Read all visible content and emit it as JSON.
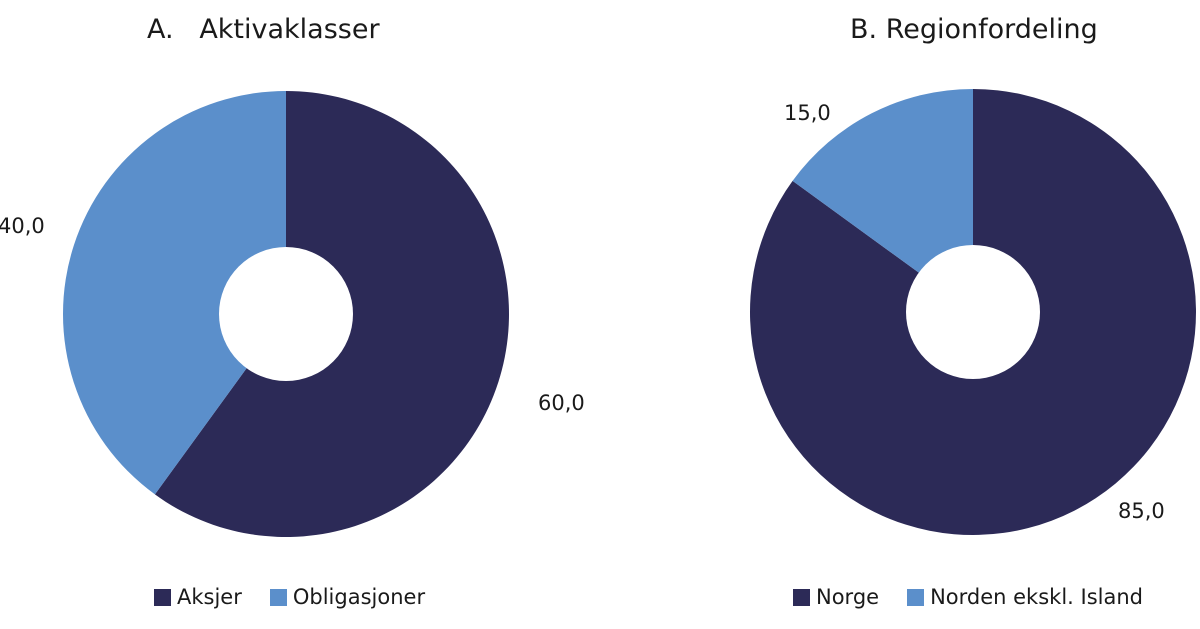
{
  "chart_data": [
    {
      "type": "pie",
      "donut": true,
      "title": "A.   Aktivaklasser",
      "categories": [
        "Aksjer",
        "Obligasjoner"
      ],
      "values": [
        60.0,
        40.0
      ],
      "value_labels": [
        "60,0",
        "40,0"
      ],
      "colors": [
        "#2c2a57",
        "#5b8fcb"
      ],
      "legend": "bottom"
    },
    {
      "type": "pie",
      "donut": true,
      "title": "B. Regionfordeling",
      "categories": [
        "Norge",
        "Norden ekskl. Island"
      ],
      "values": [
        85.0,
        15.0
      ],
      "value_labels": [
        "85,0",
        "15,0"
      ],
      "colors": [
        "#2c2a57",
        "#5b8fcb"
      ],
      "legend": "bottom"
    }
  ]
}
